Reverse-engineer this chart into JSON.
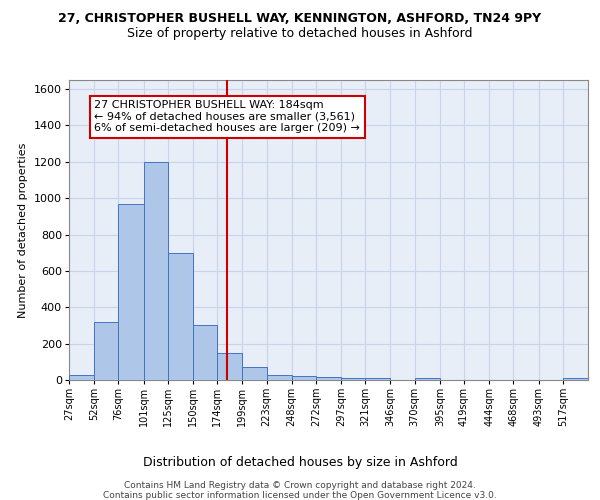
{
  "title1": "27, CHRISTOPHER BUSHELL WAY, KENNINGTON, ASHFORD, TN24 9PY",
  "title2": "Size of property relative to detached houses in Ashford",
  "xlabel": "Distribution of detached houses by size in Ashford",
  "ylabel": "Number of detached properties",
  "footer1": "Contains HM Land Registry data © Crown copyright and database right 2024.",
  "footer2": "Contains public sector information licensed under the Open Government Licence v3.0.",
  "bin_labels": [
    "27sqm",
    "52sqm",
    "76sqm",
    "101sqm",
    "125sqm",
    "150sqm",
    "174sqm",
    "199sqm",
    "223sqm",
    "248sqm",
    "272sqm",
    "297sqm",
    "321sqm",
    "346sqm",
    "370sqm",
    "395sqm",
    "419sqm",
    "444sqm",
    "468sqm",
    "493sqm",
    "517sqm"
  ],
  "bar_values": [
    27,
    320,
    970,
    1200,
    700,
    300,
    150,
    70,
    30,
    20,
    15,
    10,
    10,
    0,
    10,
    0,
    0,
    0,
    0,
    0,
    10
  ],
  "bin_edges": [
    27,
    52,
    76,
    101,
    125,
    150,
    174,
    199,
    223,
    248,
    272,
    297,
    321,
    346,
    370,
    395,
    419,
    444,
    468,
    493,
    517,
    542
  ],
  "bar_color": "#aec6e8",
  "bar_edge_color": "#4472c4",
  "vline_x": 184,
  "vline_color": "#cc0000",
  "ylim": [
    0,
    1650
  ],
  "yticks": [
    0,
    200,
    400,
    600,
    800,
    1000,
    1200,
    1400,
    1600
  ],
  "annotation_line1": "27 CHRISTOPHER BUSHELL WAY: 184sqm",
  "annotation_line2": "← 94% of detached houses are smaller (3,561)",
  "annotation_line3": "6% of semi-detached houses are larger (209) →",
  "annotation_box_color": "#ffffff",
  "annotation_box_edge": "#cc0000",
  "grid_color": "#c8d4e8",
  "bg_color": "#e8eef8",
  "title1_fontsize": 9,
  "title2_fontsize": 9,
  "ylabel_fontsize": 8,
  "xlabel_fontsize": 9,
  "xtick_fontsize": 7,
  "ytick_fontsize": 8,
  "footer_fontsize": 6.5,
  "annot_fontsize": 8
}
